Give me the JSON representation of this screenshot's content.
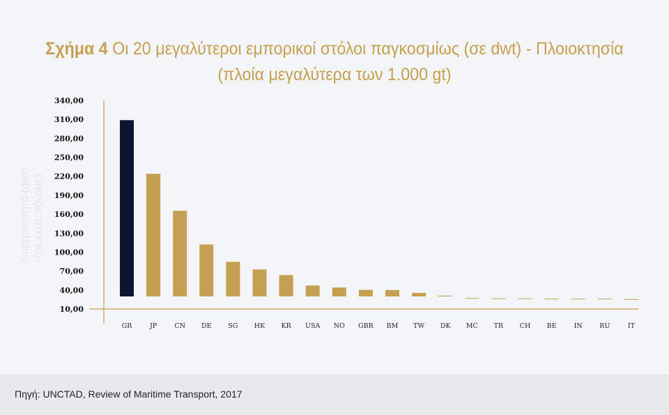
{
  "title": {
    "lead": "Σχήμα 4",
    "rest": " Οι 20 μεγαλύτεροι εμπορικοί στόλοι παγκοσμίως (σε dwt) - Πλοιοκτησία",
    "line2": "(πλοία μεγαλύτερα των 1.000 gt)"
  },
  "footer": {
    "source": "Πηγή: UNCTAD, Review of Maritime Transport, 2017"
  },
  "colors": {
    "accent": "#c6a052",
    "highlight": "#0e1530",
    "axis": "#c6a052",
    "ylabel": "#e3e4ea"
  },
  "chart_data": {
    "type": "bar",
    "title": "Σχήμα 4 Οι 20 μεγαλύτεροι εμπορικοί στόλοι παγκοσμίως (σε dwt) - Πλοιοκτησία (πλοία μεγαλύτερα των 1.000 gt)",
    "ylabel_line1": "Χωρητικότητα (dwt)",
    "ylabel_line2": "(σε εκατ. τόνους)",
    "xlabel": "",
    "categories": [
      "GR",
      "JP",
      "CN",
      "DE",
      "SG",
      "HK",
      "KR",
      "USA",
      "NO",
      "GBR",
      "BM",
      "TW",
      "DK",
      "MC",
      "TR",
      "CH",
      "BE",
      "IN",
      "RU",
      "IT"
    ],
    "values": [
      308.8,
      223.9,
      165.4,
      112.1,
      84.6,
      72.5,
      63.6,
      47.1,
      44.0,
      40.3,
      40.0,
      35.5,
      31.1,
      27.3,
      26.8,
      26.8,
      26.4,
      26.4,
      26.4,
      25.7
    ],
    "highlight_index": 0,
    "yticks": [
      10,
      40,
      70,
      100,
      130,
      160,
      190,
      220,
      250,
      280,
      310,
      340
    ],
    "yticks_labels": [
      "10,00",
      "40,00",
      "70,00",
      "100,00",
      "130,00",
      "160,00",
      "190,00",
      "220,00",
      "250,00",
      "280,00",
      "310,00",
      "340,00"
    ],
    "ylim": [
      10,
      340
    ],
    "grid": false,
    "legend": "none"
  }
}
